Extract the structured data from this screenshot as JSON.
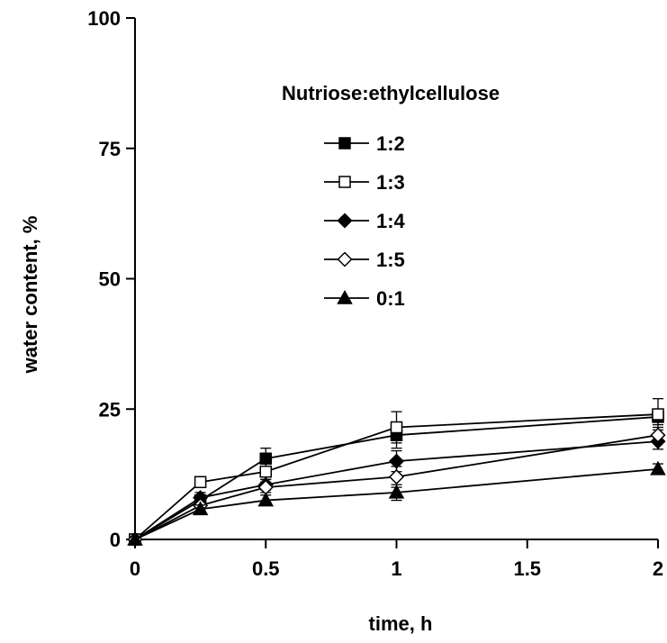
{
  "chart_data": {
    "type": "line",
    "title": "",
    "xlabel": "time, h",
    "ylabel": "water content, %",
    "xlim": [
      0,
      2
    ],
    "ylim": [
      0,
      100
    ],
    "x_ticks": [
      "0",
      "0.5",
      "1",
      "1.5",
      "2"
    ],
    "y_ticks": [
      "0",
      "25",
      "50",
      "75",
      "100"
    ],
    "grid": false,
    "legend_title": "Nutriose:ethylcellulose",
    "legend_position": "top-right",
    "x": [
      0,
      0.25,
      0.5,
      1,
      2
    ],
    "series": [
      {
        "name": "1:2",
        "marker": "square-filled",
        "values": [
          0,
          7.5,
          15.5,
          20,
          23.5
        ],
        "errors": [
          0,
          1,
          2,
          2.5,
          1.5
        ]
      },
      {
        "name": "1:3",
        "marker": "square-open",
        "values": [
          0,
          11,
          13,
          21.5,
          24
        ],
        "errors": [
          0,
          1,
          1.5,
          3,
          3
        ]
      },
      {
        "name": "1:4",
        "marker": "diamond-filled",
        "values": [
          0,
          8,
          10.5,
          15,
          18.8
        ],
        "errors": [
          0,
          1,
          1,
          2,
          1.5
        ]
      },
      {
        "name": "1:5",
        "marker": "diamond-open",
        "values": [
          0,
          6.5,
          10,
          12,
          20
        ],
        "errors": [
          0,
          1,
          1,
          2,
          1.5
        ]
      },
      {
        "name": "0:1",
        "marker": "triangle-filled",
        "values": [
          0,
          5.8,
          7.5,
          9,
          13.5
        ],
        "errors": [
          0,
          0.8,
          1,
          1.5,
          1
        ]
      }
    ]
  }
}
